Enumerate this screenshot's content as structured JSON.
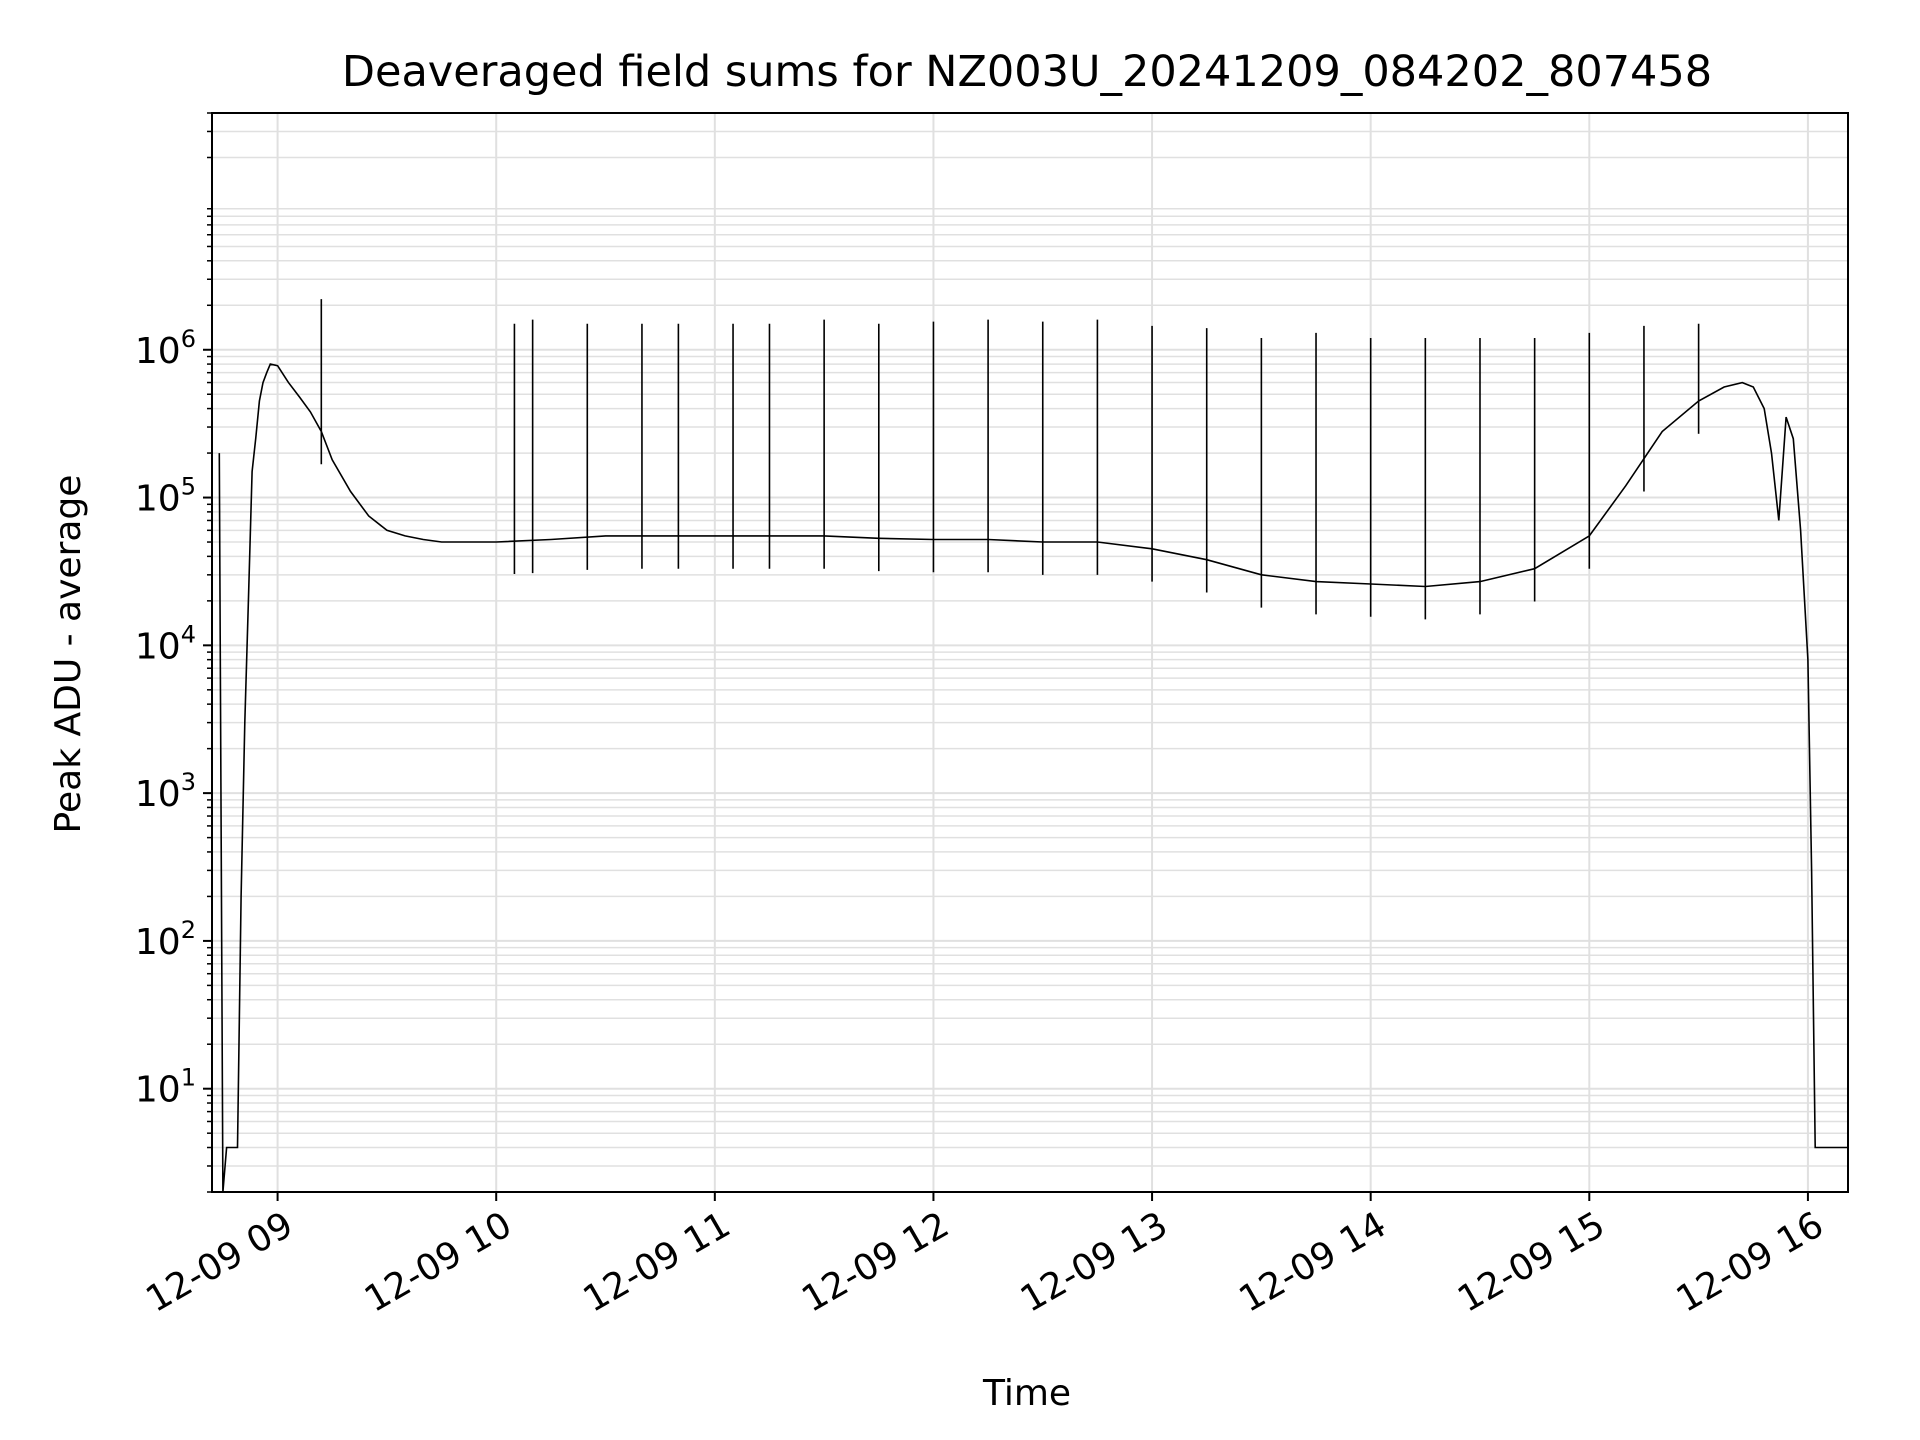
{
  "chart_data": {
    "type": "line",
    "title": "Deaveraged field sums for NZ003U_20241209_084202_807458",
    "xlabel": "Time",
    "ylabel": "Peak ADU - average",
    "yscale": "log",
    "ylim": [
      2,
      40000000
    ],
    "xlim": [
      "2024-12-09 08:42",
      "2024-12-09 16:11"
    ],
    "grid": true,
    "line_color": "#000000",
    "grid_color": "#e0e0e0",
    "x_ticks": [
      {
        "value": "2024-12-09 09:00",
        "label": "12-09 09"
      },
      {
        "value": "2024-12-09 10:00",
        "label": "12-09 10"
      },
      {
        "value": "2024-12-09 11:00",
        "label": "12-09 11"
      },
      {
        "value": "2024-12-09 12:00",
        "label": "12-09 12"
      },
      {
        "value": "2024-12-09 13:00",
        "label": "12-09 13"
      },
      {
        "value": "2024-12-09 14:00",
        "label": "12-09 14"
      },
      {
        "value": "2024-12-09 15:00",
        "label": "12-09 15"
      },
      {
        "value": "2024-12-09 16:00",
        "label": "12-09 16"
      }
    ],
    "y_ticks": [
      {
        "value": 10,
        "base": "10",
        "exp": "1"
      },
      {
        "value": 100,
        "base": "10",
        "exp": "2"
      },
      {
        "value": 1000,
        "base": "10",
        "exp": "3"
      },
      {
        "value": 10000,
        "base": "10",
        "exp": "4"
      },
      {
        "value": 100000,
        "base": "10",
        "exp": "5"
      },
      {
        "value": 1000000,
        "base": "10",
        "exp": "6"
      }
    ],
    "series": [
      {
        "x": [
          "2024-12-09 08:44",
          "2024-12-09 08:45",
          "2024-12-09 08:46",
          "2024-12-09 08:47",
          "2024-12-09 08:48",
          "2024-12-09 08:49",
          "2024-12-09 08:50",
          "2024-12-09 08:51",
          "2024-12-09 08:52",
          "2024-12-09 08:53",
          "2024-12-09 08:54",
          "2024-12-09 08:55",
          "2024-12-09 08:56",
          "2024-12-09 08:57",
          "2024-12-09 08:58",
          "2024-12-09 09:00",
          "2024-12-09 09:03",
          "2024-12-09 09:06",
          "2024-12-09 09:09",
          "2024-12-09 09:12",
          "2024-12-09 09:15",
          "2024-12-09 09:20",
          "2024-12-09 09:25",
          "2024-12-09 09:30",
          "2024-12-09 09:35",
          "2024-12-09 09:40",
          "2024-12-09 09:45",
          "2024-12-09 09:50",
          "2024-12-09 10:00",
          "2024-12-09 10:15",
          "2024-12-09 10:30",
          "2024-12-09 10:45",
          "2024-12-09 11:00",
          "2024-12-09 11:15",
          "2024-12-09 11:30",
          "2024-12-09 11:45",
          "2024-12-09 12:00",
          "2024-12-09 12:15",
          "2024-12-09 12:30",
          "2024-12-09 12:45",
          "2024-12-09 13:00",
          "2024-12-09 13:15",
          "2024-12-09 13:30",
          "2024-12-09 13:45",
          "2024-12-09 14:00",
          "2024-12-09 14:15",
          "2024-12-09 14:30",
          "2024-12-09 14:45",
          "2024-12-09 15:00",
          "2024-12-09 15:10",
          "2024-12-09 15:20",
          "2024-12-09 15:30",
          "2024-12-09 15:37",
          "2024-12-09 15:42",
          "2024-12-09 15:45",
          "2024-12-09 15:48",
          "2024-12-09 15:50",
          "2024-12-09 15:52",
          "2024-12-09 15:54",
          "2024-12-09 15:56",
          "2024-12-09 15:58",
          "2024-12-09 16:00",
          "2024-12-09 16:01",
          "2024-12-09 16:02",
          "2024-12-09 16:03",
          "2024-12-09 16:11"
        ],
        "y": [
          200000,
          2,
          4,
          4,
          4,
          4,
          200,
          3000,
          20000,
          150000,
          250000,
          450000,
          600000,
          700000,
          800000,
          780000,
          600000,
          480000,
          380000,
          280000,
          180000,
          110000,
          75000,
          60000,
          55000,
          52000,
          50000,
          50000,
          50000,
          52000,
          55000,
          55000,
          55000,
          55000,
          55000,
          53000,
          52000,
          52000,
          50000,
          50000,
          45000,
          38000,
          30000,
          27000,
          26000,
          25000,
          27000,
          33000,
          55000,
          120000,
          280000,
          450000,
          560000,
          600000,
          560000,
          400000,
          200000,
          70000,
          350000,
          250000,
          60000,
          8000,
          300,
          4,
          4,
          4
        ]
      },
      {
        "spikes": [
          {
            "x": "2024-12-09 09:12",
            "y": 2200000
          },
          {
            "x": "2024-12-09 10:05",
            "y": 1500000
          },
          {
            "x": "2024-12-09 10:10",
            "y": 1600000
          },
          {
            "x": "2024-12-09 10:25",
            "y": 1500000
          },
          {
            "x": "2024-12-09 10:40",
            "y": 1500000
          },
          {
            "x": "2024-12-09 10:50",
            "y": 1500000
          },
          {
            "x": "2024-12-09 11:05",
            "y": 1500000
          },
          {
            "x": "2024-12-09 11:15",
            "y": 1500000
          },
          {
            "x": "2024-12-09 11:30",
            "y": 1600000
          },
          {
            "x": "2024-12-09 11:45",
            "y": 1500000
          },
          {
            "x": "2024-12-09 12:00",
            "y": 1550000
          },
          {
            "x": "2024-12-09 12:15",
            "y": 1600000
          },
          {
            "x": "2024-12-09 12:30",
            "y": 1550000
          },
          {
            "x": "2024-12-09 12:45",
            "y": 1600000
          },
          {
            "x": "2024-12-09 13:00",
            "y": 1450000
          },
          {
            "x": "2024-12-09 13:15",
            "y": 1400000
          },
          {
            "x": "2024-12-09 13:30",
            "y": 1200000
          },
          {
            "x": "2024-12-09 13:45",
            "y": 1300000
          },
          {
            "x": "2024-12-09 14:00",
            "y": 1200000
          },
          {
            "x": "2024-12-09 14:15",
            "y": 1200000
          },
          {
            "x": "2024-12-09 14:30",
            "y": 1200000
          },
          {
            "x": "2024-12-09 14:45",
            "y": 1200000
          },
          {
            "x": "2024-12-09 15:00",
            "y": 1300000
          },
          {
            "x": "2024-12-09 15:15",
            "y": 1450000
          },
          {
            "x": "2024-12-09 15:30",
            "y": 1500000
          }
        ]
      }
    ]
  }
}
